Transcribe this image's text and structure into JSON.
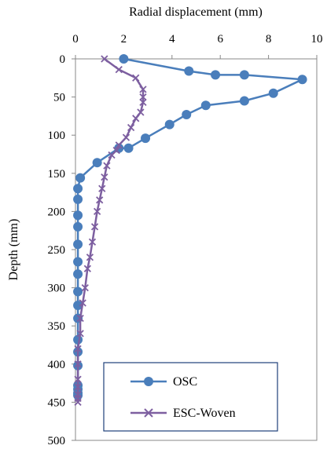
{
  "chart_data": {
    "type": "line",
    "xlabel": "Radial displacement (mm)",
    "ylabel": "Depth (mm)",
    "xlim": [
      0,
      10
    ],
    "ylim": [
      0,
      500
    ],
    "x_ticks": [
      0,
      2,
      4,
      6,
      8,
      10
    ],
    "y_ticks": [
      0,
      50,
      100,
      150,
      200,
      250,
      300,
      350,
      400,
      450,
      500
    ],
    "x_axis_position": "top",
    "y_axis_inverted": true,
    "grid": false,
    "legend_position": "bottom-right",
    "series": [
      {
        "name": "OSC",
        "color": "#4a7ebb",
        "marker": "circle",
        "x": [
          2.0,
          4.7,
          5.8,
          7.0,
          9.4,
          8.2,
          7.0,
          5.4,
          4.6,
          3.9,
          2.9,
          2.2,
          1.8,
          0.9,
          0.2,
          0.1,
          0.1,
          0.1,
          0.1,
          0.1,
          0.1,
          0.1,
          0.1,
          0.1,
          0.1,
          0.1,
          0.1,
          0.1,
          0.1,
          0.1,
          0.1,
          0.1
        ],
        "y": [
          0,
          16,
          21,
          21,
          27,
          45,
          55,
          61,
          73,
          86,
          104,
          117,
          117,
          136,
          156,
          170,
          184,
          205,
          220,
          243,
          266,
          282,
          305,
          323,
          340,
          368,
          384,
          402,
          428,
          433,
          438,
          441
        ]
      },
      {
        "name": "ESC-Woven",
        "color": "#7d5fa0",
        "marker": "x",
        "x": [
          1.2,
          1.8,
          2.5,
          2.8,
          2.8,
          2.8,
          2.7,
          2.5,
          2.3,
          2.1,
          1.8,
          1.7,
          1.5,
          1.3,
          1.2,
          1.1,
          1.0,
          0.9,
          0.8,
          0.7,
          0.6,
          0.5,
          0.4,
          0.3,
          0.2,
          0.2,
          0.1,
          0.1,
          0.1,
          0.1,
          0.1,
          0.1,
          0.1
        ],
        "y": [
          0,
          14,
          25,
          40,
          50,
          57,
          70,
          78,
          90,
          103,
          113,
          120,
          126,
          140,
          155,
          170,
          185,
          200,
          220,
          240,
          260,
          275,
          300,
          320,
          340,
          360,
          380,
          400,
          420,
          430,
          440,
          445,
          450
        ]
      }
    ]
  }
}
